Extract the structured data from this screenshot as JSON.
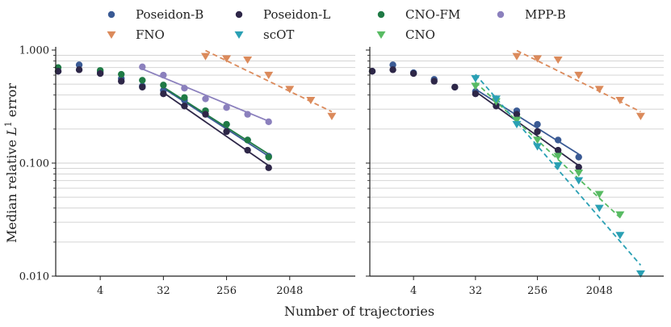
{
  "chart_data": {
    "type": "scatter",
    "scale": {
      "x": "log2",
      "y": "log10"
    },
    "xlabel": "Number of trajectories",
    "ylabel": "Median relative L1 error",
    "ylabel_parts": {
      "main": "Median relative ",
      "var": "L",
      "sup": "1",
      "tail": " error"
    },
    "xlim": [
      1,
      16384
    ],
    "ylim": [
      0.01,
      1.0
    ],
    "xticks": [
      4,
      32,
      256,
      2048
    ],
    "xtick_labels": [
      "4",
      "32",
      "256",
      "2048"
    ],
    "yticks": [
      0.01,
      0.1,
      1.0
    ],
    "ytick_labels": [
      "0.010",
      "0.100",
      "1.000"
    ],
    "legend": [
      {
        "name": "Poseidon-B",
        "marker": "circle",
        "color": "#3a5a94"
      },
      {
        "name": "Poseidon-L",
        "marker": "circle",
        "color": "#2e2748"
      },
      {
        "name": "CNO-FM",
        "marker": "circle",
        "color": "#1f7a45"
      },
      {
        "name": "MPP-B",
        "marker": "circle",
        "color": "#8b80bd"
      },
      {
        "name": "FNO",
        "marker": "triangle",
        "color": "#db8a5b"
      },
      {
        "name": "scOT",
        "marker": "triangle",
        "color": "#2aa0b4"
      },
      {
        "name": "CNO",
        "marker": "triangle",
        "color": "#58bb63"
      }
    ],
    "panels": [
      {
        "series": [
          {
            "name": "Poseidon-B",
            "color": "#3a5a94",
            "marker": "circle",
            "x": [
              1,
              2,
              4,
              8,
              16,
              32,
              64,
              128,
              256,
              512,
              1024
            ],
            "y": [
              0.65,
              0.74,
              0.64,
              0.56,
              0.48,
              0.44,
              0.36,
              0.29,
              0.22,
              0.16,
              0.115
            ],
            "fit": {
              "x": [
                32,
                1024
              ],
              "y": [
                0.46,
                0.115
              ],
              "style": "solid"
            }
          },
          {
            "name": "CNO-FM",
            "color": "#1f7a45",
            "marker": "circle",
            "x": [
              1,
              4,
              8,
              16,
              32,
              64,
              128,
              256,
              512,
              1024
            ],
            "y": [
              0.7,
              0.66,
              0.61,
              0.54,
              0.49,
              0.38,
              0.29,
              0.22,
              0.16,
              0.113
            ],
            "fit": {
              "x": [
                32,
                1024
              ],
              "y": [
                0.47,
                0.12
              ],
              "style": "solid"
            }
          },
          {
            "name": "Poseidon-L",
            "color": "#2e2748",
            "marker": "circle",
            "x": [
              1,
              2,
              4,
              8,
              16,
              32,
              64,
              128,
              256,
              512,
              1024
            ],
            "y": [
              0.65,
              0.67,
              0.62,
              0.53,
              0.47,
              0.41,
              0.32,
              0.27,
              0.19,
              0.13,
              0.091
            ],
            "fit": {
              "x": [
                32,
                1024
              ],
              "y": [
                0.42,
                0.095
              ],
              "style": "solid"
            }
          },
          {
            "name": "MPP-B",
            "color": "#8b80bd",
            "marker": "circle",
            "x": [
              16,
              32,
              64,
              128,
              256,
              512,
              1024
            ],
            "y": [
              0.71,
              0.6,
              0.46,
              0.37,
              0.31,
              0.27,
              0.232
            ],
            "fit": {
              "x": [
                16,
                1024
              ],
              "y": [
                0.68,
                0.235
              ],
              "style": "solid"
            }
          },
          {
            "name": "FNO",
            "color": "#db8a5b",
            "marker": "triangle",
            "x": [
              128,
              256,
              512,
              1024,
              2048,
              4096,
              8192
            ],
            "y": [
              0.88,
              0.84,
              0.82,
              0.6,
              0.45,
              0.36,
              0.26
            ],
            "fit": {
              "x": [
                128,
                8192
              ],
              "y": [
                0.99,
                0.285
              ],
              "style": "dashed"
            }
          }
        ]
      },
      {
        "series": [
          {
            "name": "Poseidon-B",
            "color": "#3a5a94",
            "marker": "circle",
            "x": [
              1,
              2,
              4,
              8,
              16,
              32,
              64,
              128,
              256,
              512,
              1024
            ],
            "y": [
              0.65,
              0.74,
              0.63,
              0.55,
              0.47,
              0.43,
              0.37,
              0.29,
              0.22,
              0.16,
              0.113
            ],
            "fit": {
              "x": [
                32,
                1024
              ],
              "y": [
                0.45,
                0.12
              ],
              "style": "solid"
            }
          },
          {
            "name": "Poseidon-L",
            "color": "#2e2748",
            "marker": "circle",
            "x": [
              1,
              2,
              4,
              8,
              16,
              32,
              64,
              128,
              256,
              512,
              1024
            ],
            "y": [
              0.65,
              0.67,
              0.62,
              0.53,
              0.47,
              0.41,
              0.32,
              0.27,
              0.19,
              0.13,
              0.092
            ],
            "fit": {
              "x": [
                32,
                1024
              ],
              "y": [
                0.43,
                0.095
              ],
              "style": "solid"
            }
          },
          {
            "name": "FNO",
            "color": "#db8a5b",
            "marker": "triangle",
            "x": [
              128,
              256,
              512,
              1024,
              2048,
              4096,
              8192
            ],
            "y": [
              0.88,
              0.84,
              0.82,
              0.6,
              0.45,
              0.36,
              0.26
            ],
            "fit": {
              "x": [
                128,
                8192
              ],
              "y": [
                0.99,
                0.285
              ],
              "style": "dashed"
            }
          },
          {
            "name": "CNO",
            "color": "#58bb63",
            "marker": "triangle",
            "x": [
              32,
              64,
              128,
              256,
              512,
              1024,
              2048,
              4096
            ],
            "y": [
              0.48,
              0.35,
              0.24,
              0.16,
              0.115,
              0.082,
              0.053,
              0.035
            ],
            "fit": {
              "x": [
                32,
                4096
              ],
              "y": [
                0.52,
                0.033
              ],
              "style": "dashed"
            }
          },
          {
            "name": "scOT",
            "color": "#2aa0b4",
            "marker": "triangle",
            "x": [
              32,
              64,
              128,
              256,
              512,
              1024,
              2048,
              4096,
              8192
            ],
            "y": [
              0.56,
              0.37,
              0.22,
              0.14,
              0.095,
              0.07,
              0.04,
              0.023,
              0.0105
            ],
            "fit": {
              "x": [
                32,
                8192
              ],
              "y": [
                0.61,
                0.0125
              ],
              "style": "dashed"
            }
          }
        ]
      }
    ]
  }
}
